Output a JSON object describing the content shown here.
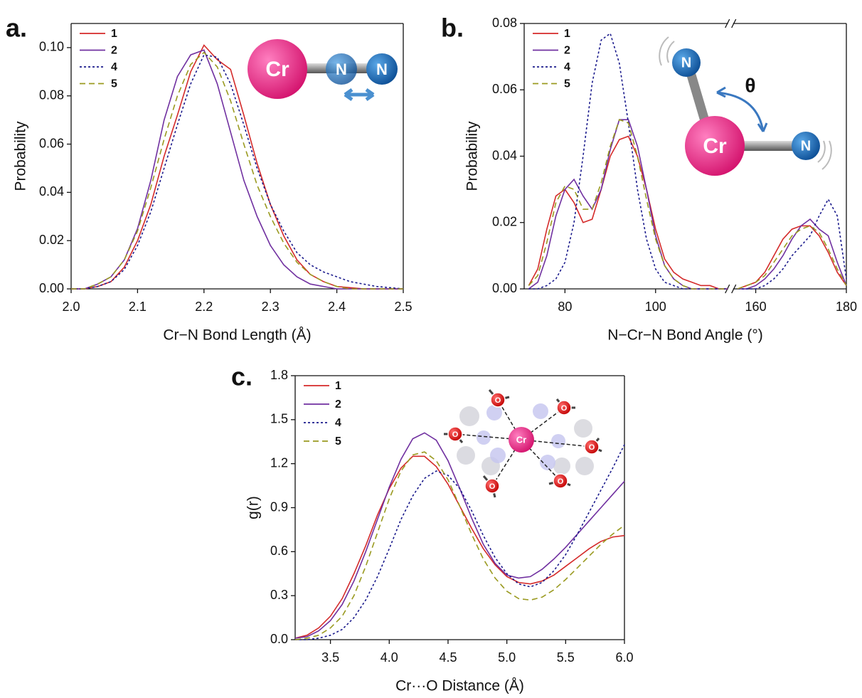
{
  "chart_data": [
    {
      "type": "line",
      "label": "a.",
      "xlabel": "Cr−N Bond Length (Å)",
      "ylabel": "Probability",
      "inset_labels": [
        "Cr",
        "N",
        "N"
      ],
      "xlim": [
        2.0,
        2.5
      ],
      "xticks": [
        {
          "value": 2.0,
          "label": "2.0"
        },
        2.1,
        2.2,
        2.3,
        2.4,
        2.5
      ],
      "ylim": [
        0,
        0.11
      ],
      "yticks": [
        {
          "value": 0,
          "label": "0.00"
        },
        {
          "value": 0.02,
          "label": "0.02"
        },
        {
          "value": 0.04,
          "label": "0.04"
        },
        {
          "value": 0.06,
          "label": "0.06"
        },
        {
          "value": 0.08,
          "label": "0.08"
        },
        {
          "value": 0.1,
          "label": "0.10"
        }
      ],
      "x": [
        2,
        2.02,
        2.04,
        2.06,
        2.08,
        2.1,
        2.12,
        2.14,
        2.16,
        2.18,
        2.2,
        2.22,
        2.24,
        2.26,
        2.28,
        2.3,
        2.32,
        2.34,
        2.36,
        2.38,
        2.4,
        2.42,
        2.44,
        2.46,
        2.48,
        2.5
      ],
      "series": [
        {
          "name": "1",
          "color": "#d42a2a",
          "style": "solid",
          "values": [
            0,
            0,
            0.001,
            0.003,
            0.009,
            0.02,
            0.035,
            0.055,
            0.072,
            0.09,
            0.101,
            0.095,
            0.091,
            0.072,
            0.052,
            0.035,
            0.022,
            0.012,
            0.006,
            0.003,
            0.001,
            0.0005,
            0,
            0,
            0,
            0
          ]
        },
        {
          "name": "2",
          "color": "#7030a0",
          "style": "solid",
          "values": [
            0,
            0,
            0.002,
            0.005,
            0.012,
            0.025,
            0.045,
            0.07,
            0.088,
            0.097,
            0.099,
            0.085,
            0.065,
            0.045,
            0.03,
            0.018,
            0.01,
            0.005,
            0.002,
            0.001,
            0,
            0,
            0,
            0,
            0,
            0
          ]
        },
        {
          "name": "4",
          "color": "#1a1a8c",
          "style": "dotted",
          "values": [
            0,
            0,
            0.001,
            0.003,
            0.008,
            0.018,
            0.032,
            0.05,
            0.068,
            0.085,
            0.097,
            0.096,
            0.085,
            0.068,
            0.05,
            0.035,
            0.024,
            0.015,
            0.01,
            0.007,
            0.005,
            0.003,
            0.002,
            0.001,
            0.0005,
            0
          ]
        },
        {
          "name": "5",
          "color": "#9a9a20",
          "style": "dashed",
          "values": [
            0,
            0,
            0.002,
            0.005,
            0.012,
            0.024,
            0.042,
            0.062,
            0.08,
            0.093,
            0.098,
            0.092,
            0.078,
            0.06,
            0.043,
            0.03,
            0.019,
            0.011,
            0.006,
            0.003,
            0.001,
            0,
            0,
            0,
            0,
            0
          ]
        }
      ]
    },
    {
      "type": "line",
      "label": "b.",
      "xlabel": "N−Cr−N Bond Angle (°)",
      "ylabel": "Probability",
      "inset_labels": [
        "N",
        "Cr",
        "N",
        "θ"
      ],
      "xlim": [
        71,
        180
      ],
      "xbreak": [
        116,
        155
      ],
      "xticks": [
        80,
        100,
        160,
        180
      ],
      "ylim": [
        0,
        0.08
      ],
      "yticks": [
        {
          "value": 0,
          "label": "0.00"
        },
        {
          "value": 0.02,
          "label": "0.02"
        },
        {
          "value": 0.04,
          "label": "0.04"
        },
        {
          "value": 0.06,
          "label": "0.06"
        },
        {
          "value": 0.08,
          "label": "0.08"
        }
      ],
      "x": [
        72,
        74,
        76,
        78,
        80,
        82,
        84,
        86,
        88,
        90,
        92,
        94,
        96,
        98,
        100,
        102,
        104,
        106,
        108,
        110,
        112,
        114,
        116,
        156,
        158,
        160,
        162,
        164,
        166,
        168,
        170,
        172,
        174,
        176,
        178,
        180
      ],
      "series": [
        {
          "name": "1",
          "color": "#d42a2a",
          "style": "solid",
          "values": [
            0.001,
            0.006,
            0.018,
            0.028,
            0.03,
            0.026,
            0.02,
            0.021,
            0.03,
            0.04,
            0.045,
            0.046,
            0.04,
            0.03,
            0.018,
            0.009,
            0.005,
            0.003,
            0.002,
            0.001,
            0.001,
            0,
            0,
            0,
            0.001,
            0.002,
            0.005,
            0.01,
            0.015,
            0.018,
            0.019,
            0.019,
            0.016,
            0.011,
            0.005,
            0.001
          ]
        },
        {
          "name": "2",
          "color": "#7030a0",
          "style": "solid",
          "values": [
            0,
            0.002,
            0.01,
            0.022,
            0.03,
            0.033,
            0.028,
            0.024,
            0.03,
            0.042,
            0.051,
            0.051,
            0.043,
            0.03,
            0.016,
            0.007,
            0.003,
            0.001,
            0,
            0,
            0,
            0,
            0,
            0,
            0,
            0.001,
            0.003,
            0.006,
            0.01,
            0.015,
            0.019,
            0.021,
            0.018,
            0.016,
            0.008,
            0.001
          ]
        },
        {
          "name": "4",
          "color": "#1a1a8c",
          "style": "dotted",
          "values": [
            0,
            0,
            0.001,
            0.003,
            0.008,
            0.02,
            0.04,
            0.062,
            0.075,
            0.077,
            0.068,
            0.05,
            0.03,
            0.015,
            0.006,
            0.002,
            0.001,
            0,
            0,
            0,
            0,
            0,
            0,
            0,
            0,
            0,
            0.001,
            0.003,
            0.006,
            0.01,
            0.013,
            0.016,
            0.022,
            0.027,
            0.022,
            0.003
          ]
        },
        {
          "name": "5",
          "color": "#9a9a20",
          "style": "dashed",
          "values": [
            0.001,
            0.004,
            0.014,
            0.026,
            0.031,
            0.03,
            0.024,
            0.024,
            0.032,
            0.043,
            0.051,
            0.05,
            0.04,
            0.027,
            0.015,
            0.007,
            0.003,
            0.001,
            0,
            0,
            0,
            0,
            0,
            0,
            0.001,
            0.002,
            0.004,
            0.008,
            0.012,
            0.016,
            0.018,
            0.019,
            0.017,
            0.012,
            0.006,
            0.001
          ]
        }
      ]
    },
    {
      "type": "line",
      "label": "c.",
      "xlabel": "Cr···O Distance (Å)",
      "ylabel": "g(r)",
      "inset_labels": [
        "Cr",
        "O",
        "O",
        "O",
        "O",
        "O",
        "O"
      ],
      "xlim": [
        3.2,
        6.0
      ],
      "xticks": [
        3.5,
        {
          "value": 4.0,
          "label": "4.0"
        },
        4.5,
        {
          "value": 5.0,
          "label": "5.0"
        },
        5.5,
        {
          "value": 6.0,
          "label": "6.0"
        }
      ],
      "ylim": [
        0,
        1.8
      ],
      "yticks": [
        {
          "value": 0,
          "label": "0.0"
        },
        0.3,
        0.6,
        0.9,
        1.2,
        1.5,
        1.8
      ],
      "x": [
        3.2,
        3.3,
        3.4,
        3.5,
        3.6,
        3.7,
        3.8,
        3.9,
        4.0,
        4.1,
        4.2,
        4.3,
        4.4,
        4.5,
        4.6,
        4.7,
        4.8,
        4.9,
        5.0,
        5.1,
        5.2,
        5.3,
        5.4,
        5.5,
        5.6,
        5.7,
        5.8,
        5.9,
        6.0
      ],
      "series": [
        {
          "name": "1",
          "color": "#d42a2a",
          "style": "solid",
          "values": [
            0.01,
            0.03,
            0.08,
            0.16,
            0.28,
            0.45,
            0.64,
            0.85,
            1.03,
            1.17,
            1.25,
            1.25,
            1.18,
            1.06,
            0.91,
            0.76,
            0.62,
            0.51,
            0.43,
            0.39,
            0.38,
            0.4,
            0.44,
            0.5,
            0.56,
            0.62,
            0.67,
            0.7,
            0.71
          ]
        },
        {
          "name": "2",
          "color": "#7030a0",
          "style": "solid",
          "values": [
            0.01,
            0.02,
            0.06,
            0.13,
            0.24,
            0.4,
            0.6,
            0.82,
            1.04,
            1.23,
            1.37,
            1.41,
            1.36,
            1.22,
            1.03,
            0.83,
            0.65,
            0.52,
            0.44,
            0.42,
            0.43,
            0.48,
            0.55,
            0.63,
            0.72,
            0.81,
            0.9,
            0.99,
            1.08
          ]
        },
        {
          "name": "4",
          "color": "#1a1a8c",
          "style": "dotted",
          "values": [
            0,
            0,
            0.01,
            0.03,
            0.07,
            0.15,
            0.27,
            0.43,
            0.62,
            0.82,
            0.98,
            1.1,
            1.15,
            1.12,
            1.03,
            0.88,
            0.71,
            0.56,
            0.45,
            0.38,
            0.36,
            0.39,
            0.47,
            0.58,
            0.72,
            0.87,
            1.02,
            1.17,
            1.33
          ]
        },
        {
          "name": "5",
          "color": "#9a9a20",
          "style": "dashed",
          "values": [
            0,
            0.01,
            0.03,
            0.08,
            0.16,
            0.3,
            0.5,
            0.73,
            0.96,
            1.15,
            1.26,
            1.28,
            1.22,
            1.09,
            0.91,
            0.72,
            0.55,
            0.42,
            0.33,
            0.28,
            0.27,
            0.29,
            0.34,
            0.41,
            0.49,
            0.57,
            0.65,
            0.72,
            0.78
          ]
        }
      ]
    }
  ]
}
